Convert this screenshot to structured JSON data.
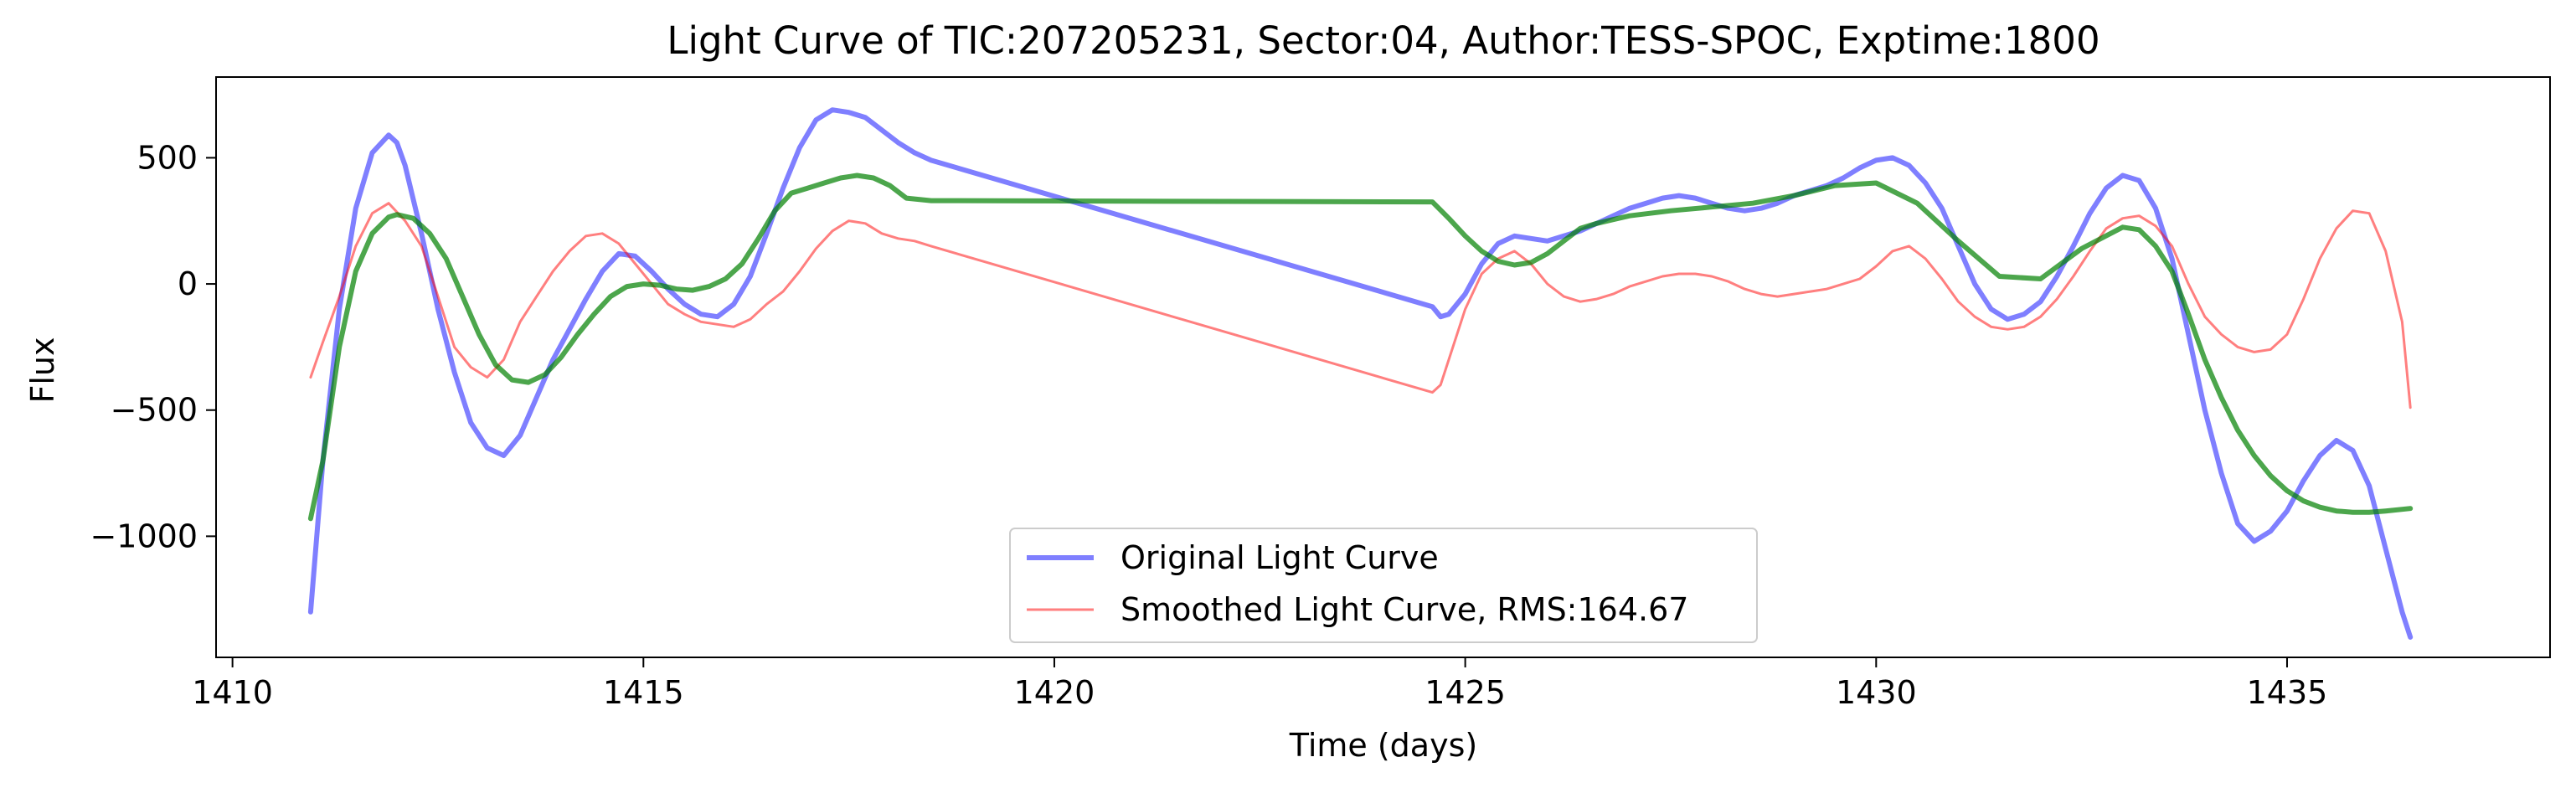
{
  "chart_data": {
    "type": "line",
    "title": "Light Curve of TIC:207205231, Sector:04, Author:TESS-SPOC, Exptime:1800",
    "xlabel": "Time (days)",
    "ylabel": "Flux",
    "xlim": [
      1409.8,
      1438.2
    ],
    "ylim": [
      -1480,
      820
    ],
    "xticks": [
      1410,
      1415,
      1420,
      1425,
      1430,
      1435
    ],
    "yticks": [
      500,
      0,
      -500,
      -1000
    ],
    "ytick_labels": [
      "500",
      "0",
      "−500",
      "−1000"
    ],
    "grid": false,
    "legend_position": "bottom-center",
    "series": [
      {
        "name": "Original Light Curve",
        "color": "#0000ff",
        "style": "thick",
        "x": [
          1410.95,
          1411.1,
          1411.3,
          1411.5,
          1411.7,
          1411.9,
          1412.0,
          1412.1,
          1412.3,
          1412.5,
          1412.7,
          1412.9,
          1413.1,
          1413.3,
          1413.5,
          1413.7,
          1413.9,
          1414.1,
          1414.3,
          1414.5,
          1414.7,
          1414.9,
          1415.1,
          1415.3,
          1415.5,
          1415.7,
          1415.9,
          1416.1,
          1416.3,
          1416.5,
          1416.7,
          1416.9,
          1417.1,
          1417.3,
          1417.5,
          1417.7,
          1417.9,
          1418.1,
          1418.3,
          1418.5,
          1424.6,
          1424.7,
          1424.8,
          1425.0,
          1425.2,
          1425.4,
          1425.6,
          1425.8,
          1426.0,
          1426.2,
          1426.4,
          1426.6,
          1426.8,
          1427.0,
          1427.2,
          1427.4,
          1427.6,
          1427.8,
          1428.0,
          1428.2,
          1428.4,
          1428.6,
          1428.8,
          1429.0,
          1429.2,
          1429.4,
          1429.6,
          1429.8,
          1430.0,
          1430.2,
          1430.4,
          1430.6,
          1430.8,
          1431.0,
          1431.2,
          1431.4,
          1431.6,
          1431.8,
          1432.0,
          1432.2,
          1432.4,
          1432.6,
          1432.8,
          1433.0,
          1433.2,
          1433.4,
          1433.6,
          1433.8,
          1434.0,
          1434.2,
          1434.4,
          1434.6,
          1434.8,
          1435.0,
          1435.2,
          1435.4,
          1435.6,
          1435.8,
          1436.0,
          1436.2,
          1436.4,
          1436.5
        ],
        "y": [
          -1300,
          -700,
          -100,
          300,
          520,
          590,
          560,
          470,
          200,
          -100,
          -350,
          -550,
          -650,
          -680,
          -600,
          -450,
          -300,
          -180,
          -60,
          50,
          120,
          110,
          50,
          -20,
          -80,
          -120,
          -130,
          -80,
          30,
          200,
          380,
          540,
          650,
          690,
          680,
          660,
          610,
          560,
          520,
          490,
          -90,
          -130,
          -120,
          -40,
          80,
          160,
          190,
          180,
          170,
          190,
          210,
          240,
          270,
          300,
          320,
          340,
          350,
          340,
          320,
          300,
          290,
          300,
          320,
          350,
          370,
          390,
          420,
          460,
          490,
          500,
          470,
          400,
          300,
          150,
          0,
          -100,
          -140,
          -120,
          -70,
          30,
          150,
          280,
          380,
          430,
          410,
          300,
          100,
          -200,
          -500,
          -750,
          -950,
          -1020,
          -980,
          -900,
          -780,
          -680,
          -620,
          -660,
          -800,
          -1050,
          -1300,
          -1400
        ]
      },
      {
        "name": "Smoothed Light Curve, RMS:164.67",
        "color": "#ff0000",
        "style": "thin",
        "x": [
          1410.95,
          1411.1,
          1411.3,
          1411.5,
          1411.7,
          1411.9,
          1412.1,
          1412.3,
          1412.5,
          1412.7,
          1412.9,
          1413.1,
          1413.3,
          1413.5,
          1413.7,
          1413.9,
          1414.1,
          1414.3,
          1414.5,
          1414.7,
          1414.9,
          1415.1,
          1415.3,
          1415.5,
          1415.7,
          1415.9,
          1416.1,
          1416.3,
          1416.5,
          1416.7,
          1416.9,
          1417.1,
          1417.3,
          1417.5,
          1417.7,
          1417.9,
          1418.1,
          1418.3,
          1418.5,
          1424.6,
          1424.7,
          1424.8,
          1425.0,
          1425.2,
          1425.4,
          1425.6,
          1425.8,
          1426.0,
          1426.2,
          1426.4,
          1426.6,
          1426.8,
          1427.0,
          1427.2,
          1427.4,
          1427.6,
          1427.8,
          1428.0,
          1428.2,
          1428.4,
          1428.6,
          1428.8,
          1429.0,
          1429.2,
          1429.4,
          1429.6,
          1429.8,
          1430.0,
          1430.2,
          1430.4,
          1430.6,
          1430.8,
          1431.0,
          1431.2,
          1431.4,
          1431.6,
          1431.8,
          1432.0,
          1432.2,
          1432.4,
          1432.6,
          1432.8,
          1433.0,
          1433.2,
          1433.4,
          1433.6,
          1433.8,
          1434.0,
          1434.2,
          1434.4,
          1434.6,
          1434.8,
          1435.0,
          1435.2,
          1435.4,
          1435.6,
          1435.8,
          1436.0,
          1436.2,
          1436.4,
          1436.5
        ],
        "y": [
          -370,
          -230,
          -50,
          150,
          280,
          320,
          250,
          150,
          -50,
          -250,
          -330,
          -370,
          -300,
          -150,
          -50,
          50,
          130,
          190,
          200,
          160,
          80,
          0,
          -80,
          -120,
          -150,
          -160,
          -170,
          -140,
          -80,
          -30,
          50,
          140,
          210,
          250,
          240,
          200,
          180,
          170,
          150,
          -430,
          -400,
          -300,
          -100,
          40,
          100,
          130,
          80,
          0,
          -50,
          -70,
          -60,
          -40,
          -10,
          10,
          30,
          40,
          40,
          30,
          10,
          -20,
          -40,
          -50,
          -40,
          -30,
          -20,
          0,
          20,
          70,
          130,
          150,
          100,
          20,
          -70,
          -130,
          -170,
          -180,
          -170,
          -130,
          -60,
          30,
          130,
          220,
          260,
          270,
          230,
          150,
          0,
          -130,
          -200,
          -250,
          -270,
          -260,
          -200,
          -60,
          100,
          220,
          290,
          280,
          130,
          -150,
          -490
        ]
      },
      {
        "name": "",
        "color": "#008000",
        "style": "thick",
        "x": [
          1410.95,
          1411.1,
          1411.3,
          1411.5,
          1411.7,
          1411.9,
          1412.0,
          1412.2,
          1412.4,
          1412.6,
          1412.8,
          1413.0,
          1413.2,
          1413.4,
          1413.6,
          1413.8,
          1414.0,
          1414.2,
          1414.4,
          1414.6,
          1414.8,
          1415.0,
          1415.2,
          1415.4,
          1415.6,
          1415.8,
          1416.0,
          1416.2,
          1416.4,
          1416.6,
          1416.8,
          1417.0,
          1417.2,
          1417.4,
          1417.6,
          1417.8,
          1418.0,
          1418.2,
          1418.5,
          1424.6,
          1424.8,
          1425.0,
          1425.2,
          1425.4,
          1425.6,
          1425.8,
          1426.0,
          1426.2,
          1426.4,
          1426.6,
          1426.8,
          1427.0,
          1427.5,
          1428.0,
          1428.5,
          1429.0,
          1429.5,
          1430.0,
          1430.5,
          1431.0,
          1431.5,
          1432.0,
          1432.5,
          1433.0,
          1433.2,
          1433.4,
          1433.6,
          1433.8,
          1434.0,
          1434.2,
          1434.4,
          1434.6,
          1434.8,
          1435.0,
          1435.2,
          1435.4,
          1435.6,
          1435.8,
          1436.0,
          1436.2,
          1436.5
        ],
        "y": [
          -930,
          -700,
          -250,
          50,
          200,
          265,
          275,
          260,
          200,
          100,
          -50,
          -200,
          -320,
          -380,
          -390,
          -360,
          -290,
          -200,
          -120,
          -50,
          -10,
          0,
          -5,
          -20,
          -25,
          -10,
          20,
          80,
          180,
          290,
          360,
          380,
          400,
          420,
          430,
          420,
          390,
          340,
          330,
          325,
          260,
          190,
          130,
          90,
          75,
          85,
          120,
          170,
          220,
          240,
          255,
          270,
          290,
          305,
          320,
          350,
          390,
          400,
          320,
          170,
          30,
          20,
          140,
          225,
          215,
          150,
          50,
          -120,
          -300,
          -450,
          -580,
          -680,
          -760,
          -820,
          -860,
          -885,
          -900,
          -905,
          -905,
          -900,
          -890
        ]
      }
    ]
  }
}
